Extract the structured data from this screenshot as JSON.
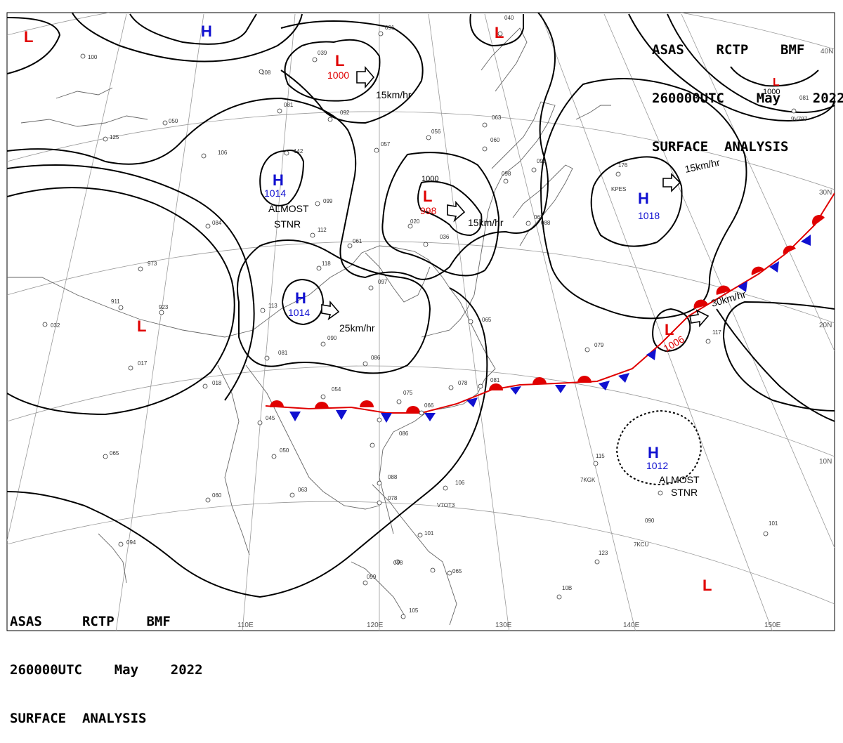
{
  "header_top_right": {
    "line1": "ASAS    RCTP    BMF",
    "line2": "260000UTC    May    2022",
    "line3": "SURFACE  ANALYSIS"
  },
  "header_bottom_left": {
    "line1": "ASAS     RCTP    BMF",
    "line2": "260000UTC    May    2022",
    "line3": "SURFACE  ANALYSIS"
  },
  "longitude_labels": [
    "110E",
    "120E",
    "130E",
    "140E",
    "150E"
  ],
  "latitude_labels": [
    "40N",
    "30N",
    "20N",
    "10N"
  ],
  "colors": {
    "high": "#1010d0",
    "low": "#e00000",
    "isobar": "#000000",
    "front_warm": "#e00000",
    "front_cold": "#1010d0"
  },
  "pressure_centers": [
    {
      "kind": "L",
      "value": ""
    },
    {
      "kind": "H",
      "value": ""
    },
    {
      "kind": "L",
      "value": "1000"
    },
    {
      "kind": "L",
      "value": ""
    },
    {
      "kind": "H",
      "value": "1014"
    },
    {
      "kind": "L",
      "value": "998"
    },
    {
      "kind": "H",
      "value": "1018"
    },
    {
      "kind": "H",
      "value": "1014"
    },
    {
      "kind": "L",
      "value": ""
    },
    {
      "kind": "L",
      "value": "1006"
    },
    {
      "kind": "H",
      "value": "1012"
    },
    {
      "kind": "L",
      "value": ""
    },
    {
      "kind": "L",
      "value": "1000"
    }
  ],
  "motion_labels": [
    "15km/hr",
    "15km/hr",
    "15km/hr",
    "25km/hr",
    "30km/hr"
  ],
  "status_labels": [
    {
      "line1": "ALMOST",
      "line2": "STNR"
    },
    {
      "line1": "ALMOST",
      "line2": "STNR"
    }
  ],
  "isobar_labels": [
    "1000",
    "1000"
  ],
  "station_labels": [
    "091",
    "040",
    "039",
    "100",
    "108",
    "081",
    "092",
    "125",
    "050",
    "106",
    "142",
    "099",
    "084",
    "112",
    "061",
    "020",
    "036",
    "973",
    "118",
    "097",
    "911",
    "923",
    "113",
    "090",
    "086",
    "081",
    "017",
    "018",
    "054",
    "075",
    "066",
    "078",
    "081",
    "065",
    "056",
    "057",
    "063",
    "060",
    "098",
    "096",
    "176",
    "062",
    "088",
    "079",
    "117",
    "045",
    "050",
    "065",
    "060",
    "063",
    "088",
    "078",
    "106",
    "086",
    "115",
    "094",
    "099",
    "098",
    "101",
    "123",
    "105",
    "10B",
    "101",
    "090",
    "081",
    "032",
    "065"
  ],
  "station_ids": [
    "KPES",
    "7KGK",
    "V7OT3",
    "7KCU",
    "9V797"
  ]
}
